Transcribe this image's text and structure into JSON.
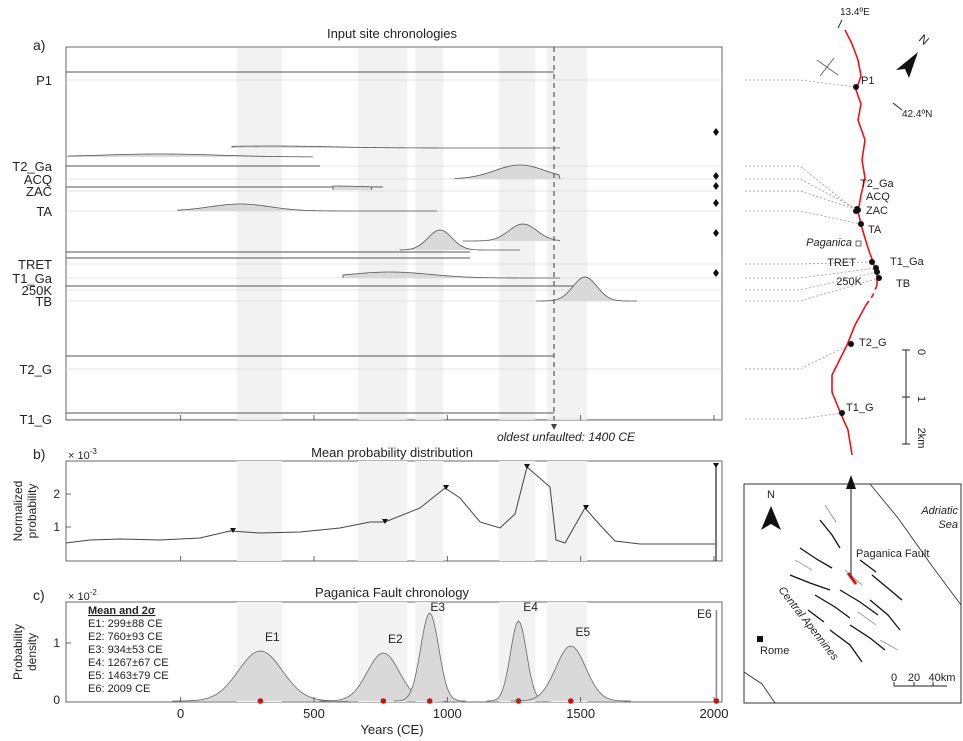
{
  "panels": {
    "a": {
      "letter": "a)",
      "title": "Input site chronologies",
      "note": "oldest unfaulted: 1400 CE"
    },
    "b": {
      "letter": "b)",
      "title": "Mean probability distribution",
      "ylabel_line1": "Normalized",
      "ylabel_line2": "probability",
      "multiplier_base": "× 10",
      "multiplier_exp": "-3",
      "yticks": [
        "1",
        "2"
      ]
    },
    "c": {
      "letter": "c)",
      "title": "Paganica Fault chronology",
      "ylabel_line1": "Probability",
      "ylabel_line2": "density",
      "multiplier_base": "× 10",
      "multiplier_exp": "-2",
      "yticks": [
        "0",
        "1"
      ]
    }
  },
  "sites": [
    "P1",
    "T2_Ga",
    "ACQ",
    "ZAC",
    "TA",
    "TRET",
    "T1_Ga",
    "250K",
    "TB",
    "T2_G",
    "T1_G"
  ],
  "xaxis": {
    "label": "Years (CE)",
    "ticks": [
      "0",
      "500",
      "1000",
      "1500",
      "2000"
    ],
    "range": [
      -430,
      2030
    ]
  },
  "shaded_intervals_ce": [
    [
      210,
      380
    ],
    [
      665,
      850
    ],
    [
      880,
      985
    ],
    [
      1195,
      1330
    ],
    [
      1375,
      1525
    ]
  ],
  "oldest_unfaulted_ce": 1400,
  "events": {
    "heading": "Mean and 2σ",
    "items": [
      {
        "id": "E1",
        "text": "E1: 299±88 CE",
        "mean": 299,
        "sd2": 88
      },
      {
        "id": "E2",
        "text": "E2: 760±93 CE",
        "mean": 760,
        "sd2": 93
      },
      {
        "id": "E3",
        "text": "E3: 934±53 CE",
        "mean": 934,
        "sd2": 53
      },
      {
        "id": "E4",
        "text": "E4: 1267±67 CE",
        "mean": 1267,
        "sd2": 67
      },
      {
        "id": "E5",
        "text": "E5: 1463±79 CE",
        "mean": 1463,
        "sd2": 79
      },
      {
        "id": "E6",
        "text": "E6: 2009 CE",
        "mean": 2009,
        "sd2": 0
      }
    ]
  },
  "map": {
    "lon_label": "13.4ºE",
    "lat_label": "42.4ºN",
    "north": "N",
    "town": "Paganica",
    "scale_ticks": [
      "0",
      "1",
      "2km"
    ],
    "inset": {
      "sea": "Adriatic",
      "sea2": "Sea",
      "fault": "Paganica Fault",
      "range": "Central Apennines",
      "city": "Rome",
      "scale": [
        "0",
        "20",
        "40km"
      ]
    },
    "site_labels": [
      "P1",
      "T2_Ga",
      "ACQ",
      "ZAC",
      "TA",
      "TRET",
      "T1_Ga",
      "250K",
      "TB",
      "T2_G",
      "T1_G"
    ]
  },
  "colors": {
    "fault": "#e8141c",
    "event_dot": "#cc1111",
    "shade": "#f2f2f2",
    "fill": "#d9d9d9"
  }
}
